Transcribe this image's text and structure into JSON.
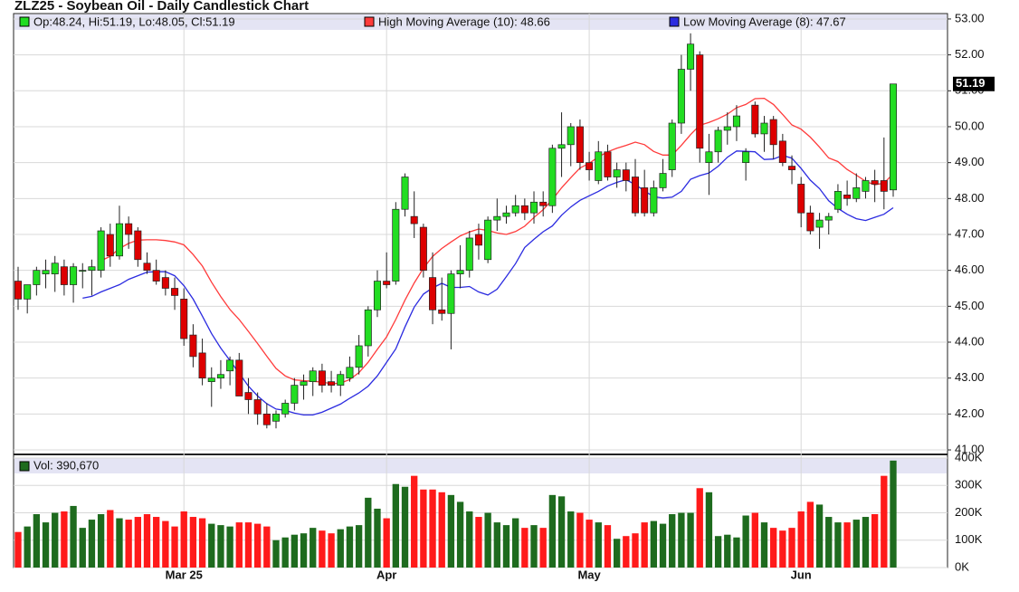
{
  "chart_data": {
    "type": "candlestick",
    "title": "ZLZ25 - Soybean Oil - Daily Candlestick Chart",
    "legend_ohlc": "Op:48.24, Hi:51.19, Lo:48.05, Cl:51.19",
    "ma_high": {
      "label": "High Moving Average (10): 48.66",
      "period": 10,
      "color": "#ff3b3b"
    },
    "ma_low": {
      "label": "Low Moving Average (8): 47.67",
      "period": 8,
      "color": "#2b2be0"
    },
    "up_color": "#22dd22",
    "down_color": "#dd0000",
    "categories": [
      null,
      null,
      null,
      null,
      null,
      null,
      null,
      null,
      null,
      null,
      null,
      null,
      null,
      null,
      null,
      null,
      null,
      null,
      "Mar 25",
      null,
      null,
      null,
      null,
      null,
      null,
      null,
      null,
      null,
      null,
      null,
      null,
      null,
      null,
      null,
      null,
      null,
      null,
      null,
      null,
      null,
      "Apr",
      null,
      null,
      null,
      null,
      null,
      null,
      null,
      null,
      null,
      null,
      null,
      null,
      null,
      null,
      null,
      null,
      null,
      null,
      null,
      null,
      null,
      "May",
      null,
      null,
      null,
      null,
      null,
      null,
      null,
      null,
      null,
      null,
      null,
      null,
      null,
      null,
      null,
      null,
      null,
      null,
      null,
      null,
      null,
      null,
      "Jun",
      null,
      null,
      null,
      null,
      null,
      null,
      null,
      null,
      null,
      null
    ],
    "open": [
      45.7,
      45.2,
      45.6,
      45.9,
      45.9,
      46.1,
      45.6,
      46.0,
      46.0,
      46.0,
      47.0,
      46.4,
      47.3,
      47.1,
      46.2,
      46.0,
      45.8,
      45.5,
      45.2,
      44.2,
      43.7,
      42.9,
      43.0,
      43.2,
      43.5,
      42.6,
      42.4,
      42.0,
      41.8,
      42.0,
      42.3,
      42.8,
      42.9,
      43.2,
      42.9,
      42.8,
      43.0,
      43.3,
      43.9,
      44.9,
      45.7,
      45.7,
      47.7,
      47.5,
      47.2,
      45.8,
      44.9,
      44.8,
      45.9,
      46.0,
      47.0,
      46.3,
      47.4,
      47.5,
      47.6,
      47.8,
      47.6,
      47.9,
      47.8,
      49.4,
      49.5,
      50.0,
      49.0,
      48.5,
      49.3,
      48.6,
      48.8,
      48.6,
      48.3,
      47.6,
      48.3,
      48.8,
      50.1,
      51.6,
      52.0,
      49.0,
      49.3,
      49.9,
      50.0,
      49.0,
      50.6,
      49.8,
      50.2,
      49.6,
      48.9,
      48.4,
      47.6,
      47.2,
      47.4,
      47.7,
      48.1,
      48.0,
      48.2,
      48.5,
      48.5,
      48.24
    ],
    "high": [
      46.1,
      45.6,
      46.1,
      46.3,
      46.4,
      46.3,
      46.2,
      46.2,
      46.3,
      47.2,
      47.3,
      47.8,
      47.5,
      47.2,
      46.5,
      46.3,
      46.0,
      45.8,
      45.5,
      44.5,
      44.1,
      43.3,
      43.5,
      43.6,
      43.7,
      43.0,
      42.6,
      42.3,
      42.1,
      42.4,
      43.0,
      43.1,
      43.3,
      43.4,
      43.2,
      43.2,
      43.6,
      44.2,
      45.0,
      46.0,
      46.5,
      47.9,
      48.7,
      48.2,
      47.3,
      46.5,
      45.8,
      46.0,
      46.7,
      47.1,
      47.3,
      47.5,
      48.0,
      47.8,
      48.1,
      48.0,
      48.2,
      48.2,
      49.5,
      50.4,
      50.1,
      50.2,
      49.3,
      49.6,
      49.5,
      49.0,
      49.0,
      49.1,
      48.8,
      48.5,
      49.1,
      50.2,
      52.0,
      52.6,
      52.1,
      49.8,
      50.0,
      50.4,
      50.6,
      49.4,
      50.7,
      50.3,
      50.3,
      49.8,
      49.2,
      48.6,
      47.8,
      47.6,
      47.6,
      48.4,
      48.5,
      48.7,
      48.6,
      48.8,
      49.7,
      51.19
    ],
    "low": [
      44.9,
      44.8,
      45.3,
      45.5,
      45.4,
      45.3,
      45.1,
      45.5,
      45.3,
      45.8,
      46.1,
      46.3,
      46.6,
      46.1,
      45.9,
      45.6,
      45.3,
      44.9,
      43.9,
      43.3,
      42.8,
      42.2,
      42.7,
      42.8,
      42.5,
      42.0,
      41.7,
      41.6,
      41.6,
      41.9,
      42.1,
      42.4,
      42.5,
      42.6,
      42.6,
      42.5,
      42.9,
      43.1,
      43.6,
      44.7,
      45.5,
      45.6,
      47.5,
      46.9,
      45.8,
      44.5,
      44.6,
      43.8,
      45.5,
      45.8,
      46.3,
      46.2,
      47.1,
      47.3,
      47.5,
      47.4,
      47.3,
      47.5,
      47.6,
      48.6,
      48.9,
      48.8,
      48.5,
      48.4,
      48.5,
      48.3,
      48.2,
      47.5,
      47.5,
      47.5,
      48.2,
      48.6,
      49.8,
      51.0,
      49.0,
      48.1,
      49.0,
      49.5,
      49.6,
      48.5,
      49.7,
      49.3,
      49.1,
      48.9,
      48.4,
      47.2,
      47.0,
      46.6,
      47.0,
      47.6,
      47.8,
      47.9,
      48.0,
      47.9,
      47.7,
      48.05
    ],
    "close": [
      45.2,
      45.6,
      46.0,
      46.0,
      46.2,
      45.6,
      46.1,
      46.0,
      46.1,
      47.1,
      46.4,
      47.3,
      47.0,
      46.3,
      46.0,
      45.7,
      45.5,
      45.3,
      44.1,
      43.6,
      43.0,
      43.0,
      43.1,
      43.5,
      42.5,
      42.4,
      42.0,
      41.7,
      42.0,
      42.3,
      42.8,
      42.9,
      43.2,
      42.8,
      42.8,
      43.1,
      43.3,
      43.9,
      44.9,
      45.7,
      45.6,
      47.7,
      48.6,
      47.3,
      46.0,
      44.9,
      44.8,
      45.9,
      46.0,
      46.9,
      46.7,
      47.4,
      47.5,
      47.6,
      47.8,
      47.6,
      47.9,
      47.8,
      49.4,
      49.5,
      50.0,
      49.0,
      48.8,
      49.3,
      48.6,
      48.8,
      48.5,
      47.6,
      47.6,
      48.3,
      48.7,
      50.1,
      51.6,
      52.3,
      49.4,
      49.3,
      49.9,
      50.0,
      50.3,
      49.3,
      49.8,
      50.1,
      49.5,
      49.0,
      48.8,
      47.6,
      47.1,
      47.4,
      47.5,
      48.2,
      48.0,
      48.3,
      48.5,
      48.4,
      48.2,
      51.19
    ],
    "ylim": [
      40.9,
      53.15
    ],
    "yticks": [
      {
        "value": 41,
        "label": "41.00"
      },
      {
        "value": 42,
        "label": "42.00"
      },
      {
        "value": 43,
        "label": "43.00"
      },
      {
        "value": 44,
        "label": "44.00"
      },
      {
        "value": 45,
        "label": "45.00"
      },
      {
        "value": 46,
        "label": "46.00"
      },
      {
        "value": 47,
        "label": "47.00"
      },
      {
        "value": 48,
        "label": "48.00"
      },
      {
        "value": 49,
        "label": "49.00"
      },
      {
        "value": 50,
        "label": "50.00"
      },
      {
        "value": 51,
        "label": "51.00"
      },
      {
        "value": 52,
        "label": "52.00"
      },
      {
        "value": 53,
        "label": "53.00"
      }
    ],
    "volume": {
      "label": "Vol: 390,670",
      "up_color": "#1e6b1e",
      "down_color": "#ff1a1a",
      "values": [
        130000,
        150000,
        195000,
        165000,
        200000,
        205000,
        225000,
        145000,
        175000,
        195000,
        210000,
        180000,
        175000,
        185000,
        195000,
        185000,
        170000,
        150000,
        205000,
        185000,
        180000,
        160000,
        155000,
        150000,
        165000,
        165000,
        160000,
        150000,
        100000,
        110000,
        120000,
        125000,
        145000,
        135000,
        125000,
        140000,
        150000,
        155000,
        255000,
        215000,
        180000,
        305000,
        295000,
        335000,
        285000,
        285000,
        275000,
        265000,
        240000,
        205000,
        185000,
        200000,
        165000,
        155000,
        180000,
        145000,
        155000,
        145000,
        265000,
        260000,
        205000,
        200000,
        175000,
        165000,
        155000,
        105000,
        115000,
        125000,
        165000,
        170000,
        160000,
        195000,
        200000,
        200000,
        290000,
        275000,
        115000,
        120000,
        110000,
        190000,
        200000,
        165000,
        145000,
        135000,
        145000,
        205000,
        240000,
        230000,
        185000,
        165000,
        165000,
        175000,
        185000,
        195000,
        335000,
        390670
      ],
      "ylim": [
        0,
        400000
      ],
      "yticks": [
        {
          "value": 0,
          "label": "0K"
        },
        {
          "value": 100000,
          "label": "100K"
        },
        {
          "value": 200000,
          "label": "200K"
        },
        {
          "value": 300000,
          "label": "300K"
        },
        {
          "value": 400000,
          "label": "400K"
        }
      ]
    }
  }
}
